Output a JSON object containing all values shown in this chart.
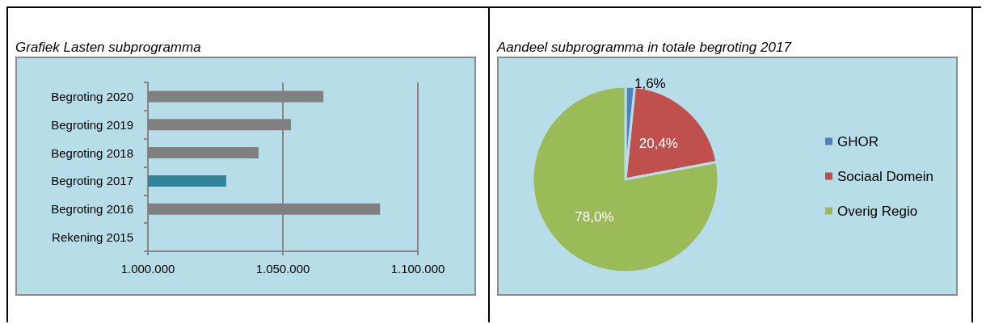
{
  "chart_data": [
    {
      "type": "bar",
      "orientation": "horizontal",
      "title": "Grafiek Lasten subprogramma",
      "categories": [
        "Begroting 2020",
        "Begroting 2019",
        "Begroting 2018",
        "Begroting 2017",
        "Begroting 2016",
        "Rekening 2015"
      ],
      "values": [
        1065000,
        1053000,
        1041000,
        1029000,
        1086000,
        null
      ],
      "colors": [
        "#808080",
        "#808080",
        "#808080",
        "#31849b",
        "#808080",
        "#808080"
      ],
      "xlim": [
        1000000,
        1100000
      ],
      "xticks": [
        {
          "value": 1000000,
          "label": "1.000.000"
        },
        {
          "value": 1050000,
          "label": "1.050.000"
        },
        {
          "value": 1100000,
          "label": "1.100.000"
        }
      ],
      "grid": "x",
      "legend": false
    },
    {
      "type": "pie",
      "title": "Aandeel subprogramma in totale begroting 2017",
      "categories": [
        "GHOR",
        "Sociaal Domein",
        "Overig Regio"
      ],
      "values": [
        1.6,
        20.4,
        78.0
      ],
      "colors": [
        "#4f81bd",
        "#c0504d",
        "#9bbb59"
      ],
      "value_labels": [
        "1,6%",
        "20,4%",
        "78,0%"
      ],
      "legend": "right"
    }
  ]
}
